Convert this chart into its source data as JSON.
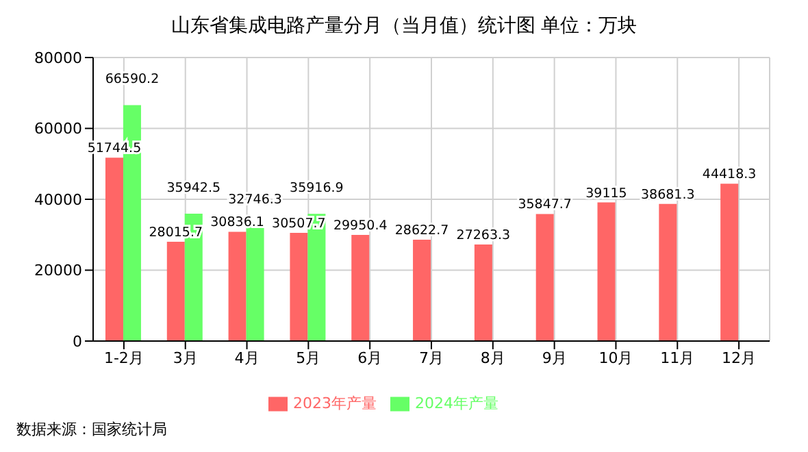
{
  "chart_data": {
    "type": "bar",
    "title": "山东省集成电路产量分月（当月值）统计图 单位：万块",
    "categories": [
      "1-2月",
      "3月",
      "4月",
      "5月",
      "6月",
      "7月",
      "8月",
      "9月",
      "10月",
      "11月",
      "12月"
    ],
    "series": [
      {
        "name": "2023年产量",
        "color": "#ff6666",
        "values": [
          51744.5,
          28015.7,
          30836.1,
          30507.7,
          29950.4,
          28622.7,
          27263.3,
          35847.7,
          39115,
          38681.3,
          44418.3
        ]
      },
      {
        "name": "2024年产量",
        "color": "#66ff66",
        "values": [
          66590.2,
          35942.5,
          32746.3,
          35916.9,
          null,
          null,
          null,
          null,
          null,
          null,
          null
        ]
      }
    ],
    "ylim": [
      0,
      80000
    ],
    "yticks": [
      0,
      20000,
      40000,
      60000,
      80000
    ],
    "grid": true,
    "legend": "bottom",
    "data_labels": true,
    "annotations": [
      "数据来源：国家统计局"
    ]
  }
}
